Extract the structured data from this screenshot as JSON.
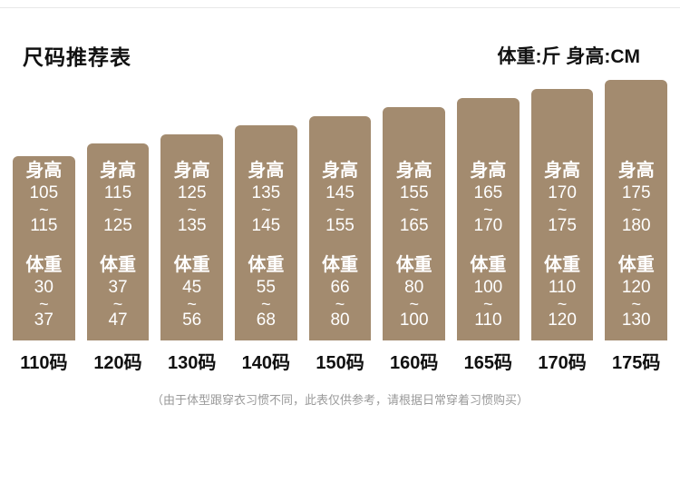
{
  "header": {
    "title": "尺码推荐表",
    "units": "体重:斤  身高:CM"
  },
  "tilde": "~",
  "bars": [
    {
      "size": "110码",
      "height_label": "身高",
      "height_min": "105",
      "height_max": "115",
      "weight_label": "体重",
      "weight_min": "30",
      "weight_max": "37"
    },
    {
      "size": "120码",
      "height_label": "身高",
      "height_min": "115",
      "height_max": "125",
      "weight_label": "体重",
      "weight_min": "37",
      "weight_max": "47"
    },
    {
      "size": "130码",
      "height_label": "身高",
      "height_min": "125",
      "height_max": "135",
      "weight_label": "体重",
      "weight_min": "45",
      "weight_max": "56"
    },
    {
      "size": "140码",
      "height_label": "身高",
      "height_min": "135",
      "height_max": "145",
      "weight_label": "体重",
      "weight_min": "55",
      "weight_max": "68"
    },
    {
      "size": "150码",
      "height_label": "身高",
      "height_min": "145",
      "height_max": "155",
      "weight_label": "体重",
      "weight_min": "66",
      "weight_max": "80"
    },
    {
      "size": "160码",
      "height_label": "身高",
      "height_min": "155",
      "height_max": "165",
      "weight_label": "体重",
      "weight_min": "80",
      "weight_max": "100"
    },
    {
      "size": "165码",
      "height_label": "身高",
      "height_min": "165",
      "height_max": "170",
      "weight_label": "体重",
      "weight_min": "100",
      "weight_max": "110"
    },
    {
      "size": "170码",
      "height_label": "身高",
      "height_min": "170",
      "height_max": "175",
      "weight_label": "体重",
      "weight_min": "110",
      "weight_max": "120"
    },
    {
      "size": "175码",
      "height_label": "身高",
      "height_min": "175",
      "height_max": "180",
      "weight_label": "体重",
      "weight_min": "120",
      "weight_max": "130"
    }
  ],
  "footnote": "（由于体型跟穿衣习惯不同，此表仅供参考，请根据日常穿着习惯购买）",
  "chart_data": {
    "type": "bar",
    "title": "尺码推荐表",
    "categories": [
      "110码",
      "120码",
      "130码",
      "140码",
      "150码",
      "160码",
      "165码",
      "170码",
      "175码"
    ],
    "series": [
      {
        "name": "身高(CM)",
        "values": [
          [
            105,
            115
          ],
          [
            115,
            125
          ],
          [
            125,
            135
          ],
          [
            135,
            145
          ],
          [
            145,
            155
          ],
          [
            155,
            165
          ],
          [
            165,
            170
          ],
          [
            170,
            175
          ],
          [
            175,
            180
          ]
        ]
      },
      {
        "name": "体重(斤)",
        "values": [
          [
            30,
            37
          ],
          [
            37,
            47
          ],
          [
            45,
            56
          ],
          [
            55,
            68
          ],
          [
            66,
            80
          ],
          [
            80,
            100
          ],
          [
            100,
            110
          ],
          [
            110,
            120
          ],
          [
            120,
            130
          ]
        ]
      }
    ],
    "bar_color": "#a38b6f",
    "grid": false,
    "legend_position": "none"
  }
}
